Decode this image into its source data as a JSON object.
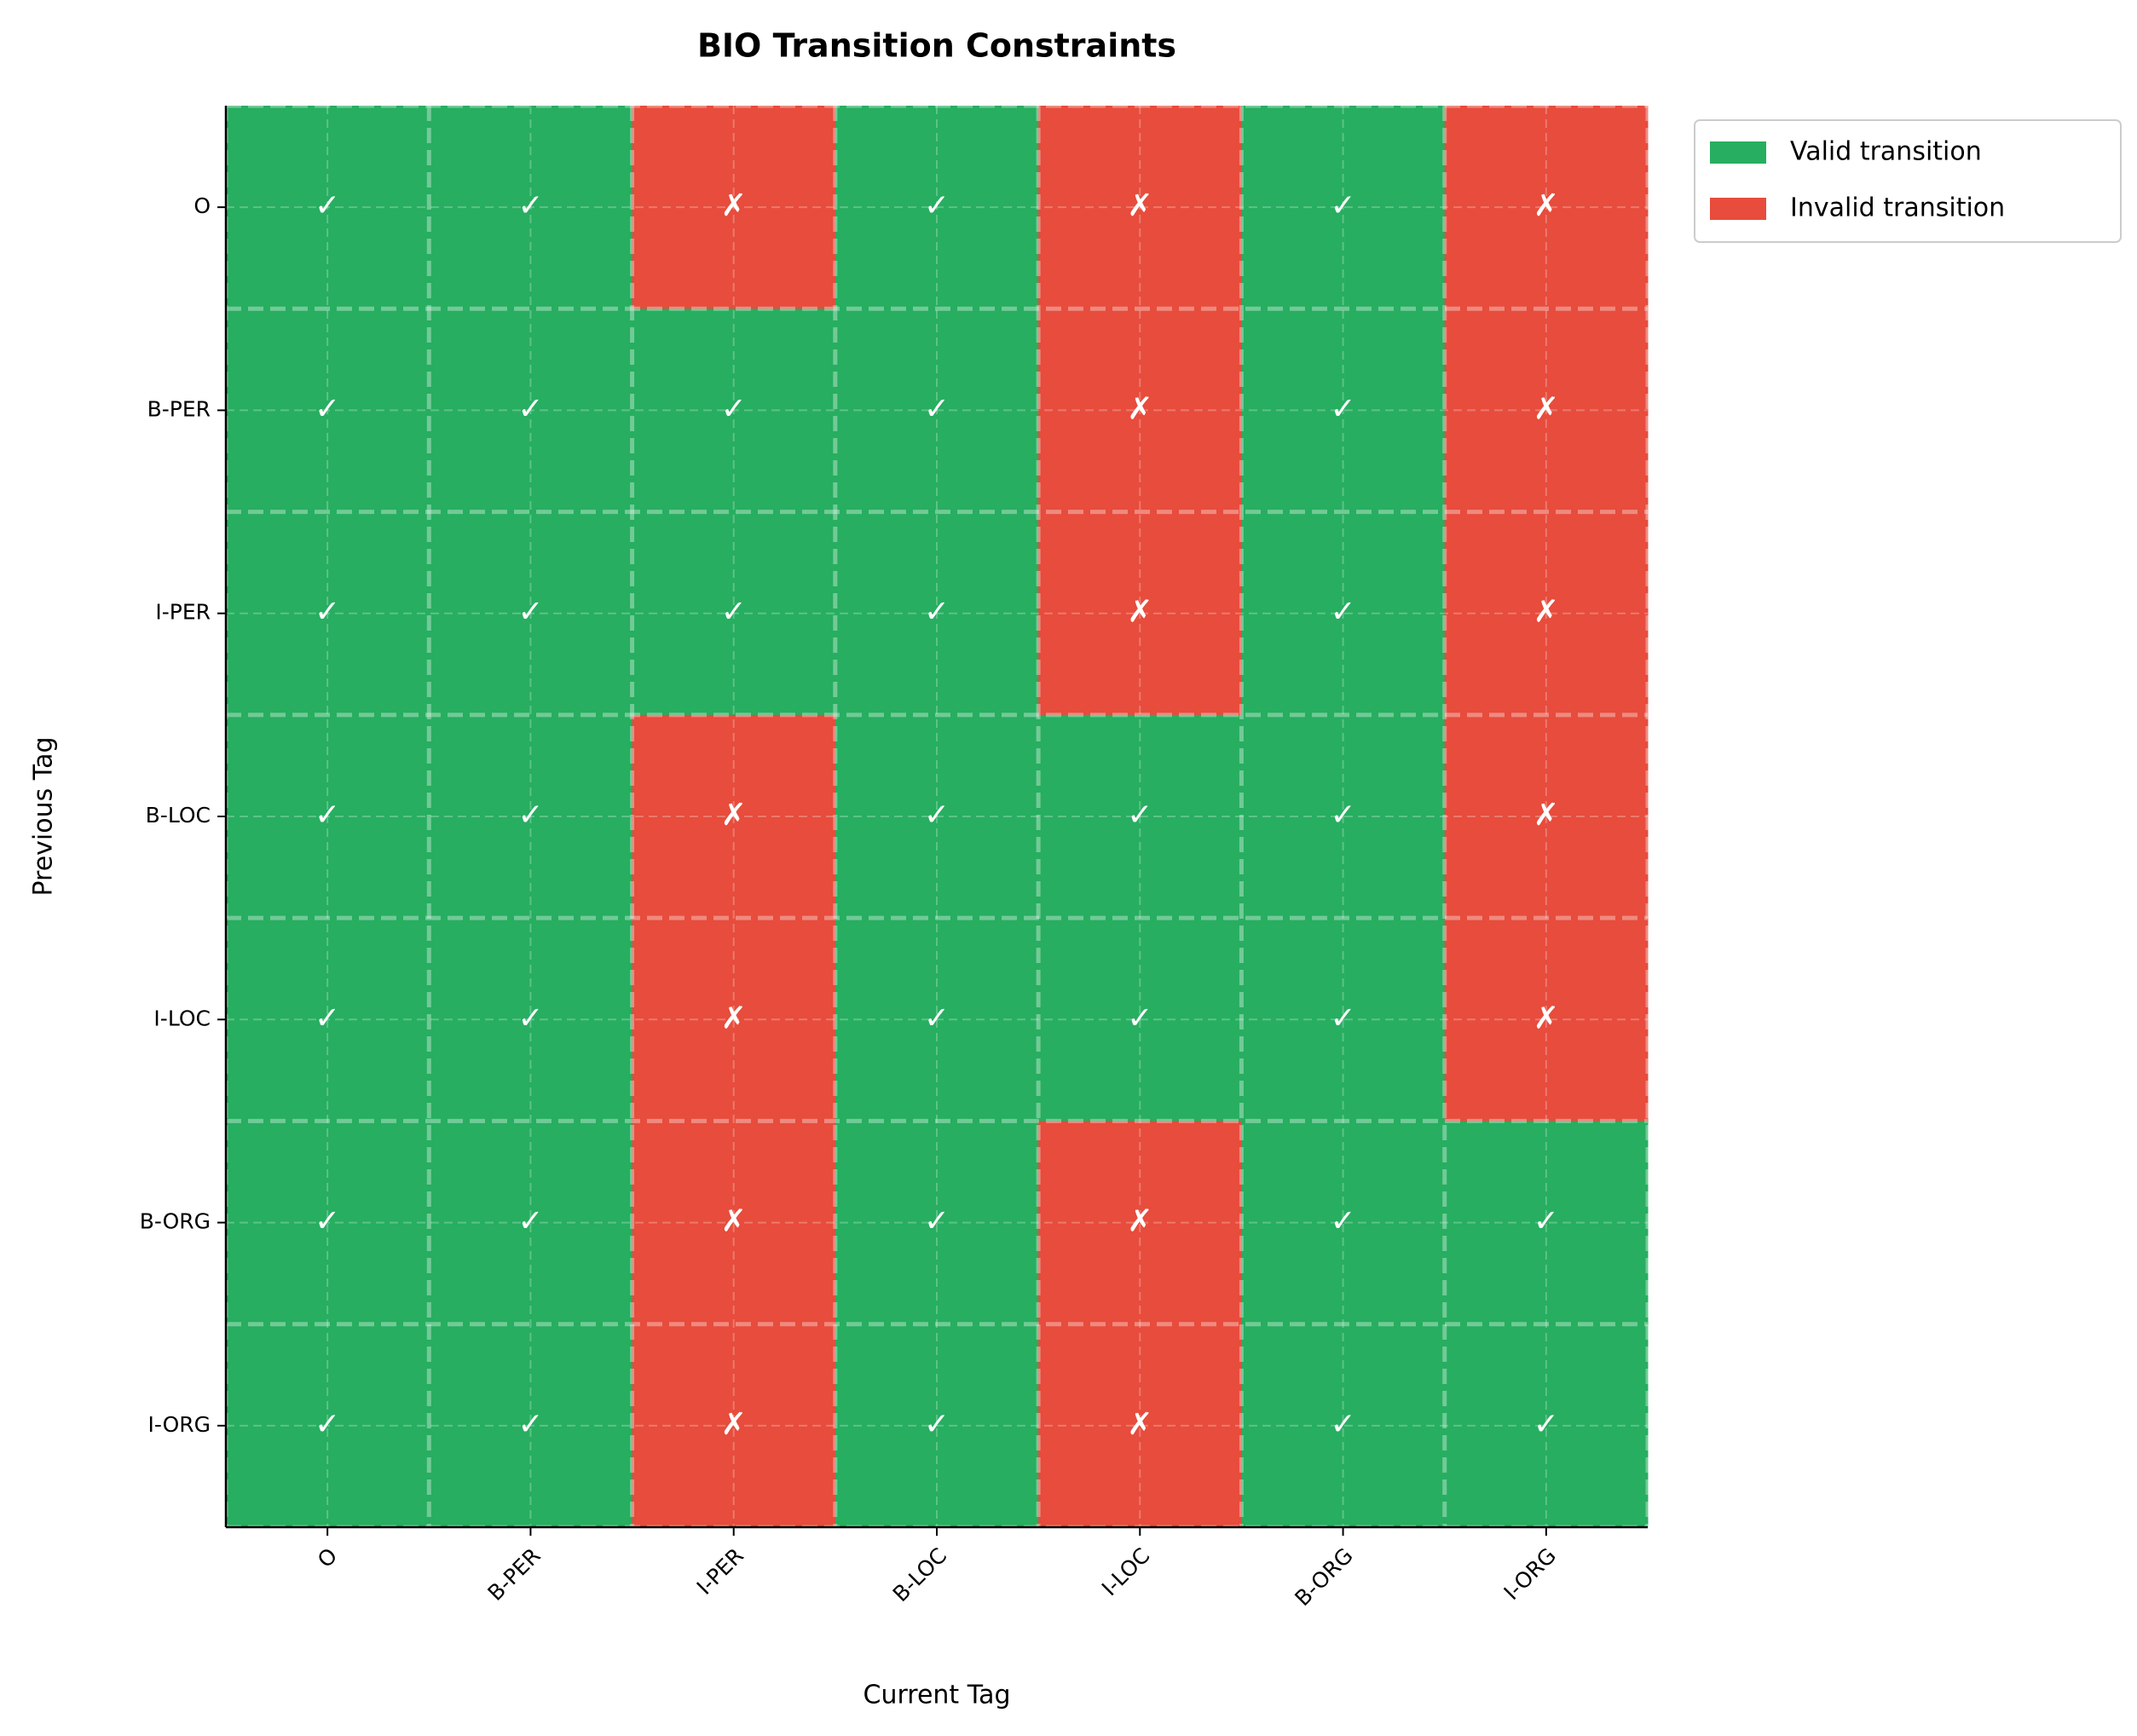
{
  "chart_data": {
    "type": "heatmap",
    "title": "BIO Transition Constraints",
    "x_label": "Current Tag",
    "y_label": "Previous Tag",
    "x_categories": [
      "O",
      "B-PER",
      "I-PER",
      "B-LOC",
      "I-LOC",
      "B-ORG",
      "I-ORG"
    ],
    "y_categories": [
      "O",
      "B-PER",
      "I-PER",
      "B-LOC",
      "I-LOC",
      "B-ORG",
      "I-ORG"
    ],
    "values": [
      [
        1,
        1,
        0,
        1,
        0,
        1,
        0
      ],
      [
        1,
        1,
        1,
        1,
        0,
        1,
        0
      ],
      [
        1,
        1,
        1,
        1,
        0,
        1,
        0
      ],
      [
        1,
        1,
        0,
        1,
        1,
        1,
        0
      ],
      [
        1,
        1,
        0,
        1,
        1,
        1,
        0
      ],
      [
        1,
        1,
        0,
        1,
        0,
        1,
        1
      ],
      [
        1,
        1,
        0,
        1,
        0,
        1,
        1
      ]
    ],
    "value_labels": [
      [
        "✓",
        "✓",
        "✗",
        "✓",
        "✗",
        "✓",
        "✗"
      ],
      [
        "✓",
        "✓",
        "✓",
        "✓",
        "✗",
        "✓",
        "✗"
      ],
      [
        "✓",
        "✓",
        "✓",
        "✓",
        "✗",
        "✓",
        "✗"
      ],
      [
        "✓",
        "✓",
        "✗",
        "✓",
        "✓",
        "✓",
        "✗"
      ],
      [
        "✓",
        "✓",
        "✗",
        "✓",
        "✓",
        "✓",
        "✗"
      ],
      [
        "✓",
        "✓",
        "✗",
        "✓",
        "✗",
        "✓",
        "✓"
      ],
      [
        "✓",
        "✓",
        "✗",
        "✓",
        "✗",
        "✓",
        "✓"
      ]
    ],
    "legend": [
      {
        "name": "Valid transition",
        "color": "#27ae60",
        "value": 1
      },
      {
        "name": "Invalid transition",
        "color": "#e74c3c",
        "value": 0
      }
    ],
    "legend_position": "outside-right",
    "grid": true
  }
}
